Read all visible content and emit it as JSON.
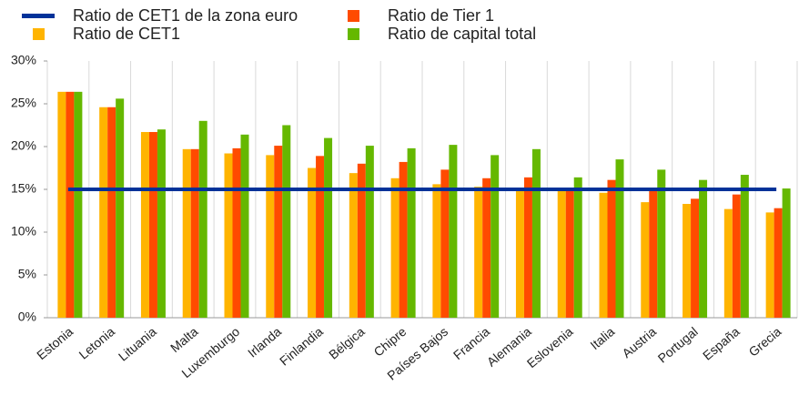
{
  "chart_data": {
    "type": "bar",
    "categories": [
      "Estonia",
      "Letonia",
      "Lituania",
      "Malta",
      "Luxemburgo",
      "Irlanda",
      "Finlandia",
      "Bélgica",
      "Chipre",
      "Países Bajos",
      "Francia",
      "Alemania",
      "Eslovenia",
      "Italia",
      "Austria",
      "Portugal",
      "España",
      "Grecia"
    ],
    "series": [
      {
        "name": "Ratio de CET1 de la zona euro",
        "color": "#003299",
        "type": "line",
        "values": [
          15,
          15,
          15,
          15,
          15,
          15,
          15,
          15,
          15,
          15,
          15,
          15,
          15,
          15,
          15,
          15,
          15,
          15
        ]
      },
      {
        "name": "Ratio de CET1",
        "color": "#ffb400",
        "values": [
          26.4,
          24.6,
          21.7,
          19.7,
          19.2,
          19.0,
          17.5,
          16.9,
          16.3,
          15.6,
          15.3,
          15.0,
          14.8,
          14.6,
          13.5,
          13.3,
          12.7,
          12.3
        ]
      },
      {
        "name": "Ratio de Tier 1",
        "color": "#ff4b00",
        "values": [
          26.4,
          24.6,
          21.7,
          19.7,
          19.8,
          20.1,
          18.9,
          18.0,
          18.2,
          17.3,
          16.3,
          16.4,
          15.1,
          16.1,
          14.8,
          13.9,
          14.4,
          12.8
        ]
      },
      {
        "name": "Ratio de capital total",
        "color": "#65b800",
        "values": [
          26.4,
          25.6,
          22.0,
          23.0,
          21.4,
          22.5,
          21.0,
          20.1,
          19.8,
          20.2,
          19.0,
          19.7,
          16.4,
          18.5,
          17.3,
          16.1,
          16.7,
          15.1
        ]
      }
    ],
    "ylim": [
      0,
      30
    ],
    "yticks": [
      {
        "value": 0,
        "label": "0%"
      },
      {
        "value": 5,
        "label": "5%"
      },
      {
        "value": 10,
        "label": "10%"
      },
      {
        "value": 15,
        "label": "15%"
      },
      {
        "value": 20,
        "label": "20%"
      },
      {
        "value": 25,
        "label": "25%"
      },
      {
        "value": 30,
        "label": "30%"
      }
    ]
  }
}
